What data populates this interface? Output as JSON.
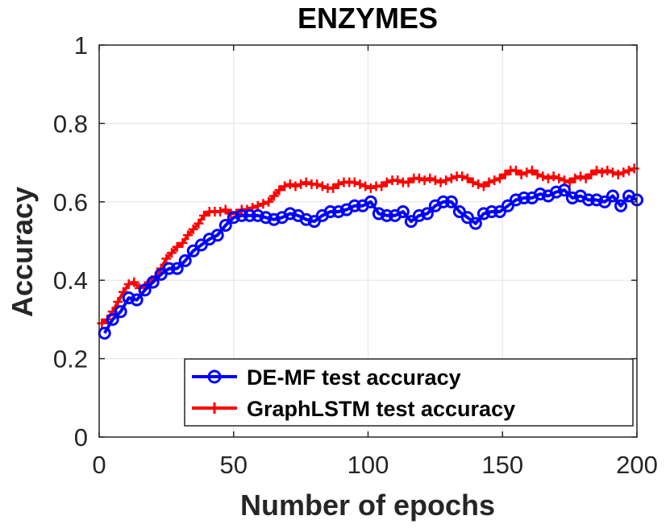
{
  "chart_data": {
    "type": "line",
    "title": "ENZYMES",
    "xlabel": "Number of epochs",
    "ylabel": "Accuracy",
    "xlim": [
      0,
      200
    ],
    "ylim": [
      0,
      1
    ],
    "xticks": [
      0,
      50,
      100,
      150,
      200
    ],
    "yticks": [
      0,
      0.2,
      0.4,
      0.6,
      0.8,
      1
    ],
    "xtick_labels": [
      "0",
      "50",
      "100",
      "150",
      "200"
    ],
    "ytick_labels": [
      "0",
      "0.2",
      "0.4",
      "0.6",
      "0.8",
      "1"
    ],
    "grid": true,
    "legend_position": "bottom-right",
    "series": [
      {
        "name": "DE-MF test accuracy",
        "color": "#0000ff",
        "marker": "circle",
        "x": [
          2,
          5,
          8,
          11,
          14,
          17,
          20,
          23,
          26,
          29,
          32,
          35,
          38,
          41,
          44,
          47,
          50,
          53,
          56,
          59,
          62,
          65,
          68,
          71,
          74,
          77,
          80,
          83,
          86,
          89,
          92,
          95,
          98,
          101,
          104,
          107,
          110,
          113,
          116,
          119,
          122,
          125,
          128,
          131,
          134,
          137,
          140,
          143,
          146,
          149,
          152,
          155,
          158,
          161,
          164,
          167,
          170,
          173,
          176,
          179,
          182,
          185,
          188,
          191,
          194,
          197,
          200
        ],
        "values": [
          0.265,
          0.3,
          0.32,
          0.355,
          0.35,
          0.375,
          0.395,
          0.415,
          0.43,
          0.43,
          0.45,
          0.475,
          0.49,
          0.505,
          0.515,
          0.54,
          0.56,
          0.565,
          0.565,
          0.565,
          0.56,
          0.555,
          0.56,
          0.57,
          0.565,
          0.555,
          0.55,
          0.565,
          0.575,
          0.575,
          0.58,
          0.59,
          0.59,
          0.6,
          0.57,
          0.565,
          0.565,
          0.575,
          0.55,
          0.565,
          0.57,
          0.59,
          0.6,
          0.6,
          0.575,
          0.56,
          0.545,
          0.57,
          0.575,
          0.575,
          0.59,
          0.605,
          0.61,
          0.61,
          0.62,
          0.615,
          0.625,
          0.63,
          0.61,
          0.615,
          0.605,
          0.605,
          0.6,
          0.615,
          0.59,
          0.615,
          0.605
        ]
      },
      {
        "name": "GraphLSTM test accuracy",
        "color": "#ff0000",
        "marker": "plus",
        "x": [
          1,
          3,
          5,
          7,
          9,
          11,
          13,
          15,
          17,
          19,
          21,
          23,
          25,
          27,
          29,
          31,
          33,
          35,
          37,
          39,
          41,
          43,
          45,
          47,
          49,
          51,
          53,
          55,
          57,
          59,
          61,
          63,
          65,
          67,
          69,
          71,
          73,
          75,
          77,
          79,
          81,
          83,
          85,
          87,
          89,
          91,
          93,
          95,
          97,
          99,
          101,
          103,
          105,
          107,
          109,
          111,
          113,
          115,
          117,
          119,
          121,
          123,
          125,
          127,
          129,
          131,
          133,
          135,
          137,
          139,
          141,
          143,
          145,
          147,
          149,
          151,
          153,
          155,
          157,
          159,
          161,
          163,
          165,
          167,
          169,
          171,
          173,
          175,
          177,
          179,
          181,
          183,
          185,
          187,
          189,
          191,
          193,
          195,
          197,
          199
        ],
        "values": [
          0.29,
          0.3,
          0.32,
          0.345,
          0.37,
          0.39,
          0.395,
          0.38,
          0.385,
          0.395,
          0.41,
          0.43,
          0.455,
          0.47,
          0.485,
          0.495,
          0.515,
          0.53,
          0.545,
          0.565,
          0.575,
          0.575,
          0.575,
          0.58,
          0.57,
          0.57,
          0.58,
          0.58,
          0.585,
          0.59,
          0.595,
          0.6,
          0.615,
          0.63,
          0.64,
          0.645,
          0.64,
          0.645,
          0.65,
          0.645,
          0.645,
          0.64,
          0.635,
          0.635,
          0.645,
          0.65,
          0.65,
          0.65,
          0.645,
          0.64,
          0.635,
          0.64,
          0.64,
          0.65,
          0.655,
          0.655,
          0.65,
          0.65,
          0.66,
          0.66,
          0.655,
          0.66,
          0.655,
          0.65,
          0.655,
          0.66,
          0.665,
          0.665,
          0.66,
          0.65,
          0.645,
          0.64,
          0.65,
          0.655,
          0.66,
          0.67,
          0.68,
          0.68,
          0.67,
          0.675,
          0.68,
          0.67,
          0.665,
          0.66,
          0.665,
          0.66,
          0.655,
          0.65,
          0.66,
          0.665,
          0.66,
          0.67,
          0.68,
          0.675,
          0.68,
          0.675,
          0.67,
          0.675,
          0.68,
          0.685
        ]
      }
    ]
  }
}
